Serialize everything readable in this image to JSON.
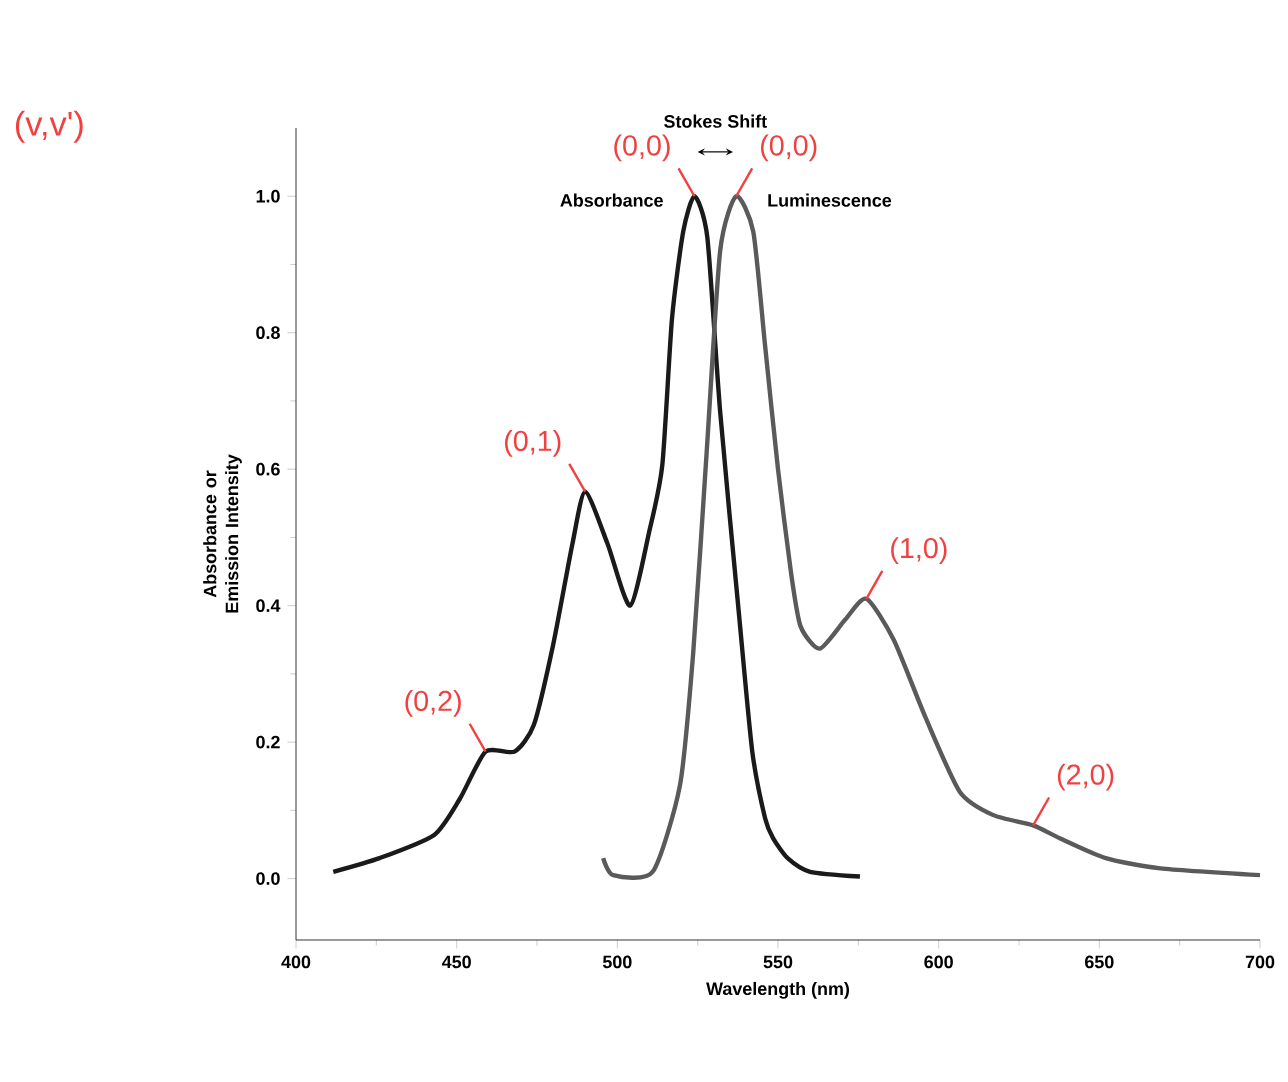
{
  "chart_data": {
    "type": "line",
    "xlabel": "Wavelength (nm)",
    "ylabel": "Absorbance or Emission Intensity",
    "xlim": [
      400,
      700
    ],
    "ylim": [
      -0.09,
      1.1
    ],
    "xticks": [
      400,
      450,
      500,
      550,
      600,
      650,
      700
    ],
    "yticks": [
      {
        "value": 0,
        "label": "0.0"
      },
      {
        "value": 0.2,
        "label": "0.2"
      },
      {
        "value": 0.4,
        "label": "0.4"
      },
      {
        "value": 0.6,
        "label": "0.6"
      },
      {
        "value": 0.8,
        "label": "0.8"
      },
      {
        "value": 1.0,
        "label": "1.0"
      }
    ],
    "grid": false,
    "legend": false,
    "marker": "none",
    "line_style": "solid",
    "series": [
      {
        "name": "Absorbance",
        "color": "#1a1a1a",
        "x": [
          411.6,
          426,
          443,
          451,
          459,
          468,
          474,
          480,
          486,
          490,
          497,
          504,
          510,
          514,
          517,
          520.5,
          524,
          528,
          532,
          538,
          542,
          546,
          548.5,
          553,
          560,
          575.5
        ],
        "values": [
          0.01,
          0.03,
          0.064,
          0.117,
          0.186,
          0.186,
          0.225,
          0.342,
          0.49,
          0.567,
          0.49,
          0.4,
          0.51,
          0.606,
          0.82,
          0.948,
          1.0,
          0.94,
          0.684,
          0.38,
          0.186,
          0.088,
          0.059,
          0.03,
          0.01,
          0.003
        ]
      },
      {
        "name": "Luminescence",
        "color": "#5a5a5a",
        "x": [
          495.6,
          498.7,
          511,
          519.5,
          523.6,
          527.8,
          532,
          537,
          542.3,
          546,
          550,
          554,
          557,
          563,
          571,
          577.5,
          586,
          596,
          606.6,
          617,
          629.4,
          637.7,
          652,
          669,
          700
        ],
        "values": [
          0.03,
          0.005,
          0.01,
          0.137,
          0.33,
          0.625,
          0.92,
          1.0,
          0.948,
          0.78,
          0.6,
          0.45,
          0.37,
          0.337,
          0.38,
          0.41,
          0.35,
          0.235,
          0.127,
          0.093,
          0.078,
          0.059,
          0.03,
          0.015,
          0.005
        ]
      }
    ],
    "annotations": [
      "(v,v')",
      "Stokes Shift",
      {
        "text": "(0,0)",
        "x": 524,
        "y": 1.0
      },
      {
        "text": "(0,0)",
        "x": 537,
        "y": 1.0
      },
      {
        "text": "(0,1)",
        "x": 490,
        "y": 0.567
      },
      {
        "text": "(0,2)",
        "x": 459,
        "y": 0.186
      },
      {
        "text": "(1,0)",
        "x": 577.5,
        "y": 0.41
      },
      {
        "text": "(2,0)",
        "x": 629.4,
        "y": 0.078
      }
    ]
  }
}
